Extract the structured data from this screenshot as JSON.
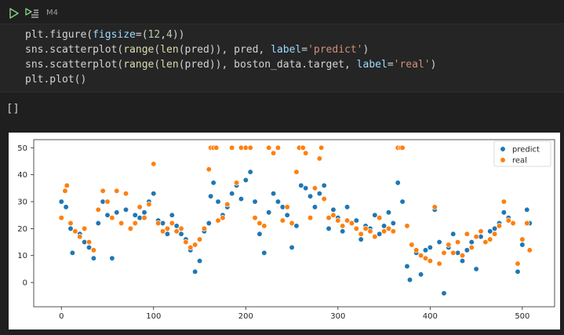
{
  "cell": {
    "label": "M4",
    "code_lines": [
      [
        {
          "t": "plt.figure(",
          "c": "#d4d4d4"
        },
        {
          "t": "figsize",
          "c": "#9cdcfe"
        },
        {
          "t": "=(",
          "c": "#d4d4d4"
        },
        {
          "t": "12",
          "c": "#b5cea8"
        },
        {
          "t": ",",
          "c": "#d4d4d4"
        },
        {
          "t": "4",
          "c": "#b5cea8"
        },
        {
          "t": "))",
          "c": "#d4d4d4"
        }
      ],
      [
        {
          "t": "sns.scatterplot(",
          "c": "#d4d4d4"
        },
        {
          "t": "range",
          "c": "#dcdcaa"
        },
        {
          "t": "(",
          "c": "#d4d4d4"
        },
        {
          "t": "len",
          "c": "#dcdcaa"
        },
        {
          "t": "(pred)), pred, ",
          "c": "#d4d4d4"
        },
        {
          "t": "label",
          "c": "#9cdcfe"
        },
        {
          "t": "=",
          "c": "#d4d4d4"
        },
        {
          "t": "'predict'",
          "c": "#ce9178"
        },
        {
          "t": ")",
          "c": "#d4d4d4"
        }
      ],
      [
        {
          "t": "sns.scatterplot(",
          "c": "#d4d4d4"
        },
        {
          "t": "range",
          "c": "#dcdcaa"
        },
        {
          "t": "(",
          "c": "#d4d4d4"
        },
        {
          "t": "len",
          "c": "#dcdcaa"
        },
        {
          "t": "(pred)), boston_data.target, ",
          "c": "#d4d4d4"
        },
        {
          "t": "label",
          "c": "#9cdcfe"
        },
        {
          "t": "=",
          "c": "#d4d4d4"
        },
        {
          "t": "'real'",
          "c": "#ce9178"
        },
        {
          "t": ")",
          "c": "#d4d4d4"
        }
      ],
      [
        {
          "t": "plt.plot()",
          "c": "#d4d4d4"
        }
      ]
    ]
  },
  "output": {
    "text": "[]"
  },
  "chart_data": {
    "type": "scatter",
    "xlim": [
      -30,
      535
    ],
    "ylim": [
      -9,
      53
    ],
    "x_ticks": [
      0,
      100,
      200,
      300,
      400,
      500
    ],
    "y_ticks": [
      0,
      10,
      20,
      30,
      40,
      50
    ],
    "grid": false,
    "legend_position": "top-right",
    "series": [
      {
        "name": "predict",
        "color": "#1f77b4",
        "points": [
          [
            0,
            30
          ],
          [
            5,
            28
          ],
          [
            10,
            20
          ],
          [
            12,
            11
          ],
          [
            20,
            18
          ],
          [
            25,
            15
          ],
          [
            30,
            13
          ],
          [
            35,
            9
          ],
          [
            40,
            22
          ],
          [
            45,
            30
          ],
          [
            50,
            25
          ],
          [
            55,
            9
          ],
          [
            60,
            26
          ],
          [
            65,
            22
          ],
          [
            70,
            27
          ],
          [
            75,
            20
          ],
          [
            80,
            25
          ],
          [
            85,
            24
          ],
          [
            90,
            26
          ],
          [
            95,
            30
          ],
          [
            100,
            33
          ],
          [
            105,
            23
          ],
          [
            110,
            22
          ],
          [
            115,
            18
          ],
          [
            120,
            25
          ],
          [
            125,
            21
          ],
          [
            130,
            18
          ],
          [
            135,
            16
          ],
          [
            140,
            12
          ],
          [
            145,
            4
          ],
          [
            150,
            8
          ],
          [
            155,
            19
          ],
          [
            160,
            22
          ],
          [
            162,
            32
          ],
          [
            165,
            37
          ],
          [
            170,
            30
          ],
          [
            175,
            25
          ],
          [
            180,
            28
          ],
          [
            185,
            33
          ],
          [
            190,
            36
          ],
          [
            195,
            31
          ],
          [
            200,
            38
          ],
          [
            205,
            41
          ],
          [
            210,
            30
          ],
          [
            215,
            18
          ],
          [
            220,
            11
          ],
          [
            225,
            26
          ],
          [
            230,
            33
          ],
          [
            235,
            30
          ],
          [
            240,
            28
          ],
          [
            245,
            25
          ],
          [
            250,
            13
          ],
          [
            255,
            21
          ],
          [
            260,
            36
          ],
          [
            265,
            35
          ],
          [
            270,
            32
          ],
          [
            275,
            28
          ],
          [
            280,
            33
          ],
          [
            285,
            36
          ],
          [
            290,
            20
          ],
          [
            295,
            27
          ],
          [
            300,
            24
          ],
          [
            305,
            19
          ],
          [
            310,
            28
          ],
          [
            315,
            22
          ],
          [
            320,
            23
          ],
          [
            325,
            16
          ],
          [
            330,
            21
          ],
          [
            335,
            20
          ],
          [
            340,
            25
          ],
          [
            345,
            18
          ],
          [
            350,
            21
          ],
          [
            355,
            26
          ],
          [
            360,
            22
          ],
          [
            365,
            37
          ],
          [
            370,
            30
          ],
          [
            375,
            6
          ],
          [
            378,
            1
          ],
          [
            380,
            14
          ],
          [
            385,
            11
          ],
          [
            390,
            3
          ],
          [
            395,
            12
          ],
          [
            400,
            13
          ],
          [
            405,
            27
          ],
          [
            410,
            15
          ],
          [
            415,
            -4
          ],
          [
            420,
            13
          ],
          [
            425,
            18
          ],
          [
            430,
            11
          ],
          [
            435,
            8
          ],
          [
            440,
            12
          ],
          [
            445,
            15
          ],
          [
            450,
            5
          ],
          [
            455,
            17
          ],
          [
            460,
            15
          ],
          [
            465,
            19
          ],
          [
            470,
            20
          ],
          [
            475,
            22
          ],
          [
            480,
            26
          ],
          [
            485,
            24
          ],
          [
            490,
            22
          ],
          [
            495,
            4
          ],
          [
            500,
            14
          ],
          [
            505,
            27
          ],
          [
            508,
            22
          ]
        ]
      },
      {
        "name": "real",
        "color": "#ff7f0e",
        "points": [
          [
            0,
            24
          ],
          [
            4,
            34
          ],
          [
            6,
            36
          ],
          [
            10,
            22
          ],
          [
            15,
            19
          ],
          [
            20,
            17
          ],
          [
            25,
            20
          ],
          [
            30,
            15
          ],
          [
            35,
            12
          ],
          [
            40,
            27
          ],
          [
            45,
            34
          ],
          [
            50,
            30
          ],
          [
            55,
            24
          ],
          [
            60,
            34
          ],
          [
            65,
            22
          ],
          [
            70,
            33
          ],
          [
            75,
            20
          ],
          [
            80,
            22
          ],
          [
            85,
            28
          ],
          [
            90,
            24
          ],
          [
            95,
            29
          ],
          [
            100,
            44
          ],
          [
            105,
            22
          ],
          [
            110,
            19
          ],
          [
            115,
            20
          ],
          [
            120,
            22
          ],
          [
            125,
            19
          ],
          [
            130,
            20
          ],
          [
            135,
            15
          ],
          [
            140,
            13
          ],
          [
            145,
            14
          ],
          [
            150,
            16
          ],
          [
            155,
            20
          ],
          [
            160,
            42
          ],
          [
            162,
            50
          ],
          [
            165,
            50
          ],
          [
            168,
            50
          ],
          [
            170,
            23
          ],
          [
            175,
            24
          ],
          [
            180,
            29
          ],
          [
            185,
            50
          ],
          [
            190,
            37
          ],
          [
            195,
            50
          ],
          [
            200,
            50
          ],
          [
            205,
            50
          ],
          [
            210,
            24
          ],
          [
            215,
            22
          ],
          [
            220,
            21
          ],
          [
            225,
            50
          ],
          [
            230,
            48
          ],
          [
            235,
            50
          ],
          [
            240,
            23
          ],
          [
            245,
            28
          ],
          [
            250,
            22
          ],
          [
            255,
            41
          ],
          [
            258,
            50
          ],
          [
            262,
            50
          ],
          [
            265,
            48
          ],
          [
            270,
            24
          ],
          [
            275,
            35
          ],
          [
            280,
            46
          ],
          [
            282,
            50
          ],
          [
            285,
            31
          ],
          [
            290,
            24
          ],
          [
            295,
            25
          ],
          [
            300,
            23
          ],
          [
            305,
            21
          ],
          [
            310,
            23
          ],
          [
            315,
            22
          ],
          [
            320,
            20
          ],
          [
            325,
            18
          ],
          [
            330,
            20
          ],
          [
            335,
            19
          ],
          [
            340,
            17
          ],
          [
            345,
            24
          ],
          [
            350,
            19
          ],
          [
            355,
            20
          ],
          [
            360,
            19
          ],
          [
            365,
            50
          ],
          [
            368,
            50
          ],
          [
            370,
            50
          ],
          [
            375,
            21
          ],
          [
            380,
            14
          ],
          [
            385,
            12
          ],
          [
            390,
            10
          ],
          [
            395,
            9
          ],
          [
            400,
            8
          ],
          [
            405,
            28
          ],
          [
            410,
            7
          ],
          [
            415,
            11
          ],
          [
            420,
            14
          ],
          [
            425,
            11
          ],
          [
            430,
            15
          ],
          [
            435,
            10
          ],
          [
            440,
            18
          ],
          [
            445,
            13
          ],
          [
            450,
            17
          ],
          [
            455,
            19
          ],
          [
            460,
            15
          ],
          [
            465,
            16
          ],
          [
            470,
            18
          ],
          [
            475,
            21
          ],
          [
            480,
            30
          ],
          [
            485,
            23
          ],
          [
            490,
            22
          ],
          [
            495,
            7
          ],
          [
            500,
            16
          ],
          [
            505,
            22
          ],
          [
            508,
            12
          ]
        ]
      }
    ]
  }
}
